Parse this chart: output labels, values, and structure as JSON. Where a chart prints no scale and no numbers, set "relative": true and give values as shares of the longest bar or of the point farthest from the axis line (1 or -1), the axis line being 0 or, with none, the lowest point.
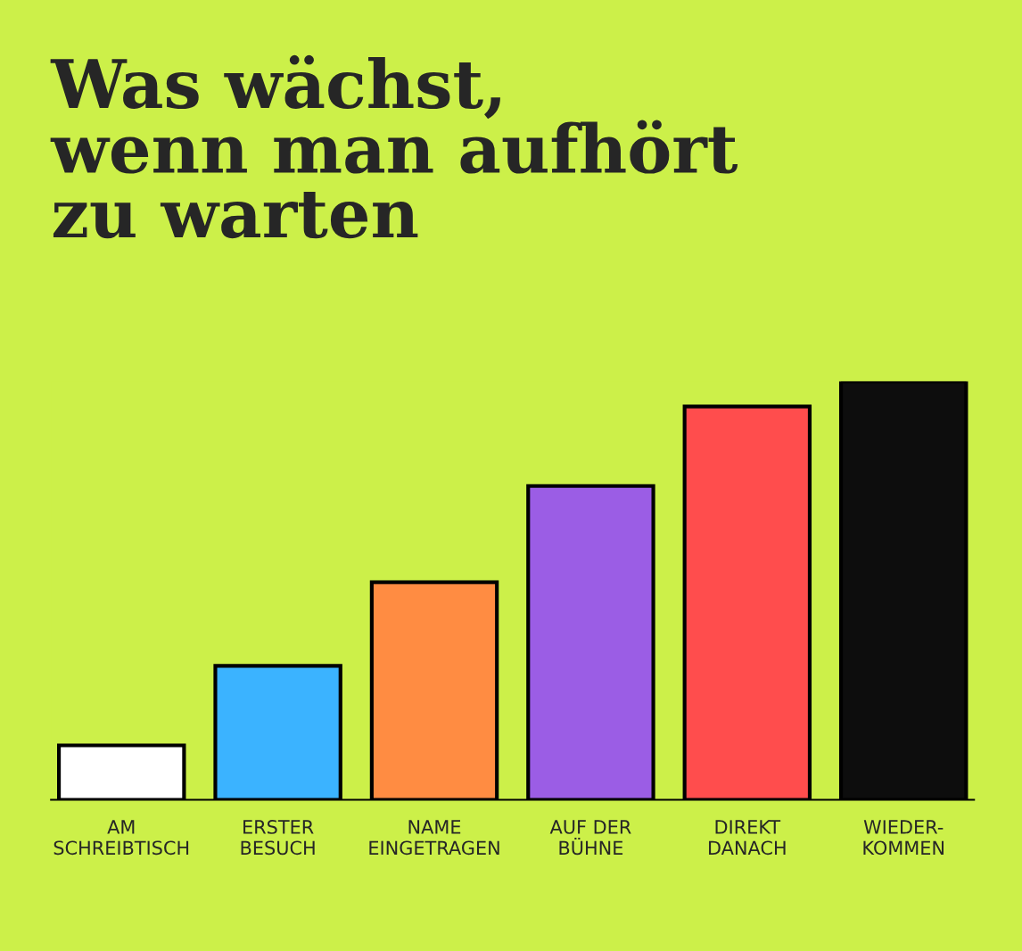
{
  "chart_data": {
    "type": "bar",
    "title": "Was wächst,\nwenn man aufhört\nzu warten",
    "relative": true,
    "categories": [
      "AM\nSCHREIBTISCH",
      "ERSTER\nBESUCH",
      "NAME\nEINGETRAGEN",
      "AUF DER\nBÜHNE",
      "DIREKT\nDANACH",
      "WIEDER-\nKOMMEN"
    ],
    "values": [
      0.13,
      0.32,
      0.52,
      0.75,
      0.94,
      1
    ],
    "colors": [
      "#ffffff",
      "#3bb3ff",
      "#ff8c42",
      "#9b5de5",
      "#ff4d4d",
      "#0d0d0d"
    ]
  }
}
